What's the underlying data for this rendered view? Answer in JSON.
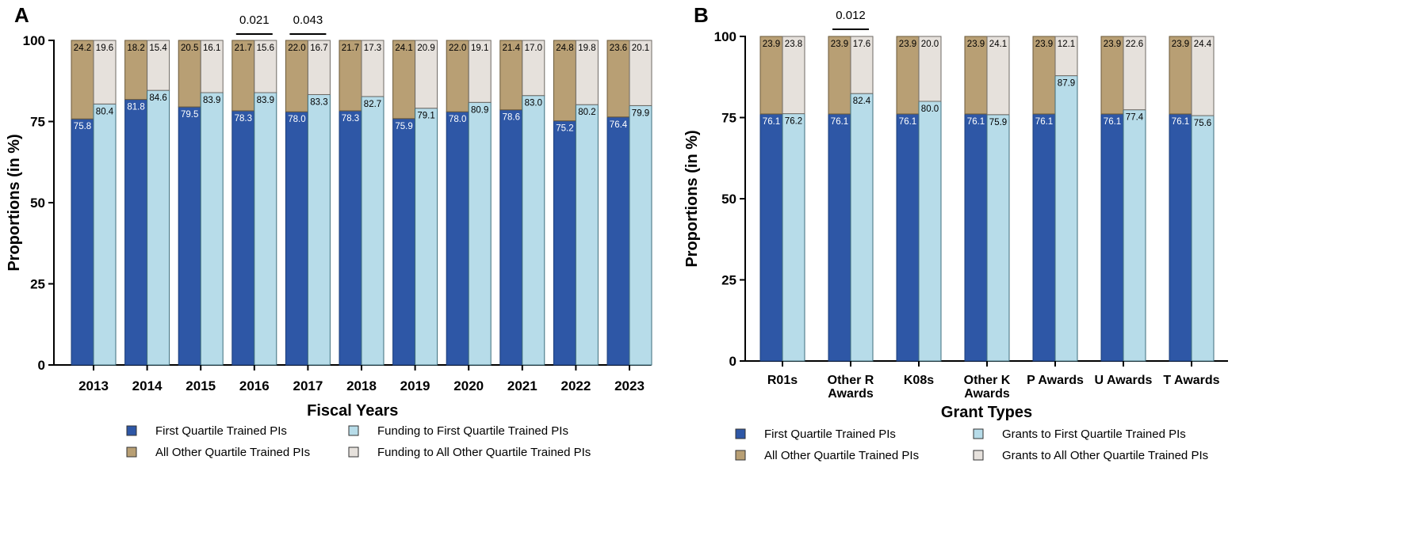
{
  "chart_data": [
    {
      "type": "bar",
      "panel": "A",
      "xlabel": "Fiscal Years",
      "ylabel": "Proportions (in %)",
      "ylim": [
        0,
        100
      ],
      "yticks": [
        0,
        25,
        50,
        75,
        100
      ],
      "categories": [
        "2013",
        "2014",
        "2015",
        "2016",
        "2017",
        "2018",
        "2019",
        "2020",
        "2021",
        "2022",
        "2023"
      ],
      "series": [
        {
          "name": "First Quartile Trained PIs",
          "color": "#2e57a6",
          "values": [
            75.8,
            81.8,
            79.5,
            78.3,
            78.0,
            78.3,
            75.9,
            78.0,
            78.6,
            75.2,
            76.4
          ]
        },
        {
          "name": "All Other Quartile Trained PIs",
          "color": "#b89f74",
          "values": [
            24.2,
            18.2,
            20.5,
            21.7,
            22.0,
            21.7,
            24.1,
            22.0,
            21.4,
            24.8,
            23.6
          ]
        },
        {
          "name": "Funding to First Quartile Trained PIs",
          "color": "#b7dce9",
          "values": [
            80.4,
            84.6,
            83.9,
            83.9,
            83.3,
            82.7,
            79.1,
            80.9,
            83.0,
            80.2,
            79.9
          ]
        },
        {
          "name": "Funding to All Other Quartile Trained PIs",
          "color": "#e6e1dc",
          "values": [
            19.6,
            15.4,
            16.1,
            15.6,
            16.7,
            17.3,
            20.9,
            19.1,
            17.0,
            19.8,
            20.1
          ]
        }
      ],
      "annotations": [
        {
          "category": "2016",
          "text": "0.021"
        },
        {
          "category": "2017",
          "text": "0.043"
        }
      ],
      "legend": "bottom"
    },
    {
      "type": "bar",
      "panel": "B",
      "xlabel": "Grant Types",
      "ylabel": "Proportions (in %)",
      "ylim": [
        0,
        100
      ],
      "yticks": [
        0,
        25,
        50,
        75,
        100
      ],
      "categories": [
        [
          "R01s"
        ],
        [
          "Other R",
          "Awards"
        ],
        [
          "K08s"
        ],
        [
          "Other K",
          "Awards"
        ],
        [
          "P Awards"
        ],
        [
          "U Awards"
        ],
        [
          "T Awards"
        ]
      ],
      "series": [
        {
          "name": "First Quartile Trained PIs",
          "color": "#2e57a6",
          "values": [
            76.1,
            76.1,
            76.1,
            76.1,
            76.1,
            76.1,
            76.1
          ]
        },
        {
          "name": "All Other Quartile Trained PIs",
          "color": "#b89f74",
          "values": [
            23.9,
            23.9,
            23.9,
            23.9,
            23.9,
            23.9,
            23.9
          ]
        },
        {
          "name": "Grants to First Quartile Trained PIs",
          "color": "#b7dce9",
          "values": [
            76.2,
            82.4,
            80.0,
            75.9,
            87.9,
            77.4,
            75.6
          ]
        },
        {
          "name": "Grants to All Other Quartile Trained PIs",
          "color": "#e6e1dc",
          "values": [
            23.8,
            17.6,
            20.0,
            24.1,
            12.1,
            22.6,
            24.4
          ]
        }
      ],
      "annotations": [
        {
          "category": 1,
          "text": "0.012"
        }
      ],
      "legend": "bottom"
    }
  ]
}
